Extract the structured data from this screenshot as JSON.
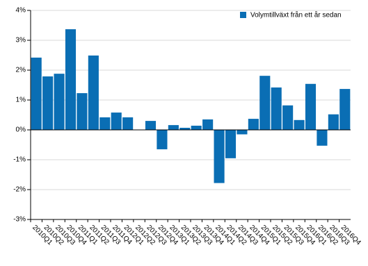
{
  "chart_data": {
    "type": "bar",
    "legend": "Volymtillväxt från ett år sedan",
    "color": "#0a6eb4",
    "legend_position": "upper right",
    "grid": true,
    "categories": [
      "2010Q1",
      "2010Q2",
      "2010Q3",
      "2010Q4",
      "2011Q1",
      "2011Q2",
      "2011Q3",
      "2011Q4",
      "2012Q1",
      "2012Q2",
      "2012Q3",
      "2012Q4",
      "2013Q1",
      "2013Q2",
      "2013Q3",
      "2013Q4",
      "2014Q1",
      "2014Q2",
      "2014Q3",
      "2014Q4",
      "2015Q1",
      "2015Q2",
      "2015Q3",
      "2015Q4",
      "2016Q1",
      "2016Q2",
      "2016Q3",
      "2016Q4"
    ],
    "values": [
      2.42,
      1.79,
      1.88,
      3.37,
      1.23,
      2.49,
      0.42,
      0.58,
      0.42,
      0,
      0.3,
      -0.65,
      0.16,
      0.07,
      0.14,
      0.35,
      -1.78,
      -0.95,
      -0.15,
      0.37,
      1.81,
      1.42,
      0.82,
      0.33,
      1.54,
      -0.53,
      0.52,
      1.37
    ],
    "ylim": [
      -3,
      4
    ],
    "yticks": [
      {
        "value": -3,
        "label": "-3%"
      },
      {
        "value": -2,
        "label": "-2%"
      },
      {
        "value": -1,
        "label": "-1%"
      },
      {
        "value": 0,
        "label": "0%"
      },
      {
        "value": 1,
        "label": "1%"
      },
      {
        "value": 2,
        "label": "2%"
      },
      {
        "value": 3,
        "label": "3%"
      },
      {
        "value": 4,
        "label": "4%"
      }
    ]
  }
}
